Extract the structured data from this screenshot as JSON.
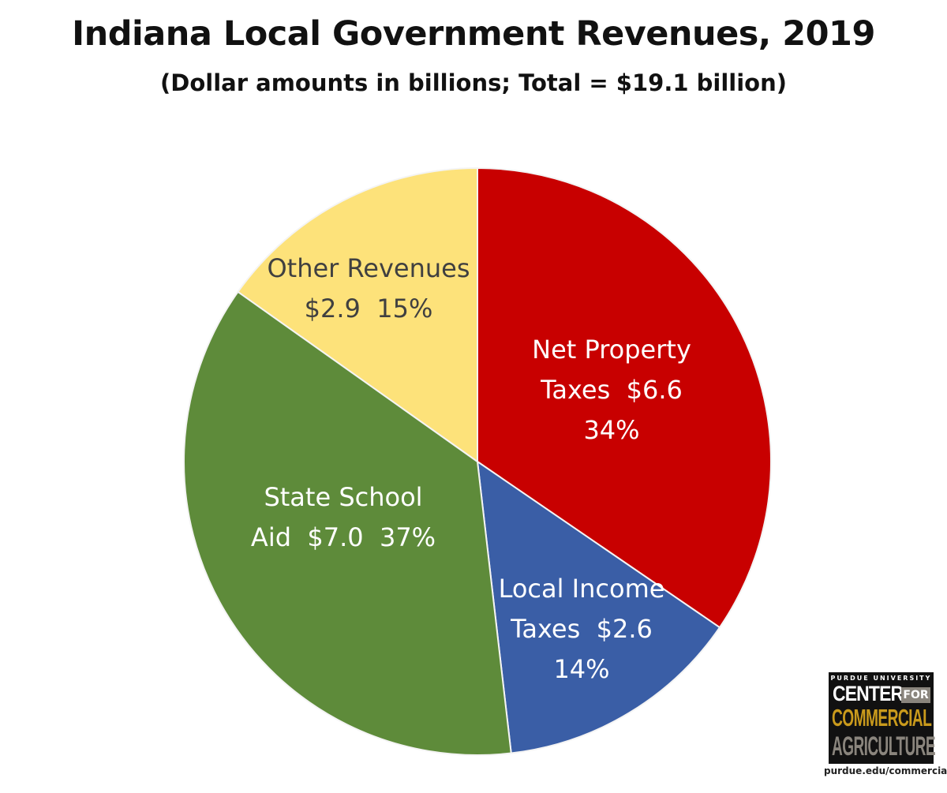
{
  "chart_data": {
    "type": "pie",
    "title": "Indiana Local Government Revenues, 2019",
    "subtitle": "(Dollar amounts in billions; Total = $19.1 billion)",
    "total": 19.1,
    "start": "12 o'clock, clockwise",
    "slices": [
      {
        "name": "Net Property Taxes",
        "value": 6.6,
        "percent": 34,
        "color": "#c80000",
        "text_color": "#ffffff",
        "label_lines": [
          "Net Property",
          "Taxes  $6.6",
          "34%"
        ]
      },
      {
        "name": "Local Income Taxes",
        "value": 2.6,
        "percent": 14,
        "color": "#3a5ea6",
        "text_color": "#ffffff",
        "label_lines": [
          "Local Income",
          "Taxes  $2.6",
          "14%"
        ]
      },
      {
        "name": "State School Aid",
        "value": 7.0,
        "percent": 37,
        "color": "#5e8b3a",
        "text_color": "#ffffff",
        "label_lines": [
          "State School",
          "Aid  $7.0  37%"
        ]
      },
      {
        "name": "Other Revenues",
        "value": 2.9,
        "percent": 15,
        "color": "#fde27a",
        "text_color": "#404040",
        "label_lines": [
          "Other Revenues",
          "$2.9  15%"
        ]
      }
    ]
  },
  "logo": {
    "line1": "PURDUE UNIVERSITY",
    "line2": "CENTER",
    "line2b": "FOR",
    "line3": "COMMERCIAL",
    "line4": "AGRICULTURE",
    "url": "purdue.edu/commercialag"
  }
}
